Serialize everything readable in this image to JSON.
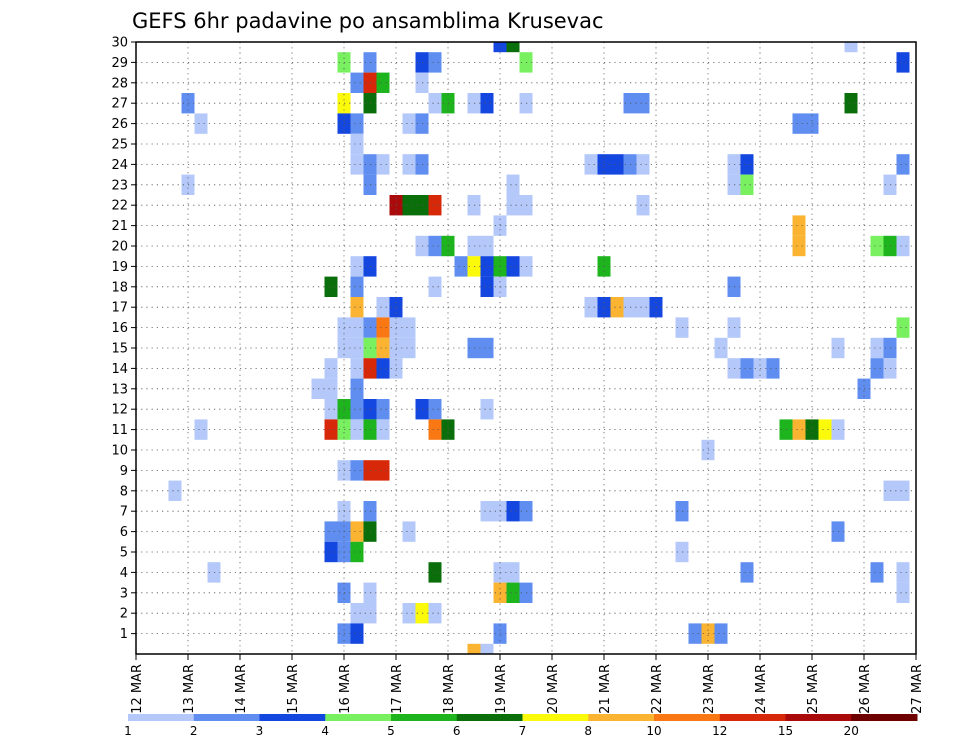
{
  "chart_data": {
    "type": "heatmap",
    "title": "GEFS 6hr padavine po ansamblima Krusevac",
    "xlabel": "",
    "ylabel": "",
    "x_tick_labels": [
      "12 MAR",
      "13 MAR",
      "14 MAR",
      "15 MAR",
      "16 MAR",
      "17 MAR",
      "18 MAR",
      "19 MAR",
      "20 MAR",
      "21 MAR",
      "22 MAR",
      "23 MAR",
      "24 MAR",
      "25 MAR",
      "26 MAR",
      "27 MAR"
    ],
    "y_tick_labels": [
      "1",
      "2",
      "3",
      "4",
      "5",
      "6",
      "7",
      "8",
      "9",
      "10",
      "11",
      "12",
      "13",
      "14",
      "15",
      "16",
      "17",
      "18",
      "19",
      "20",
      "21",
      "22",
      "23",
      "24",
      "25",
      "26",
      "27",
      "28",
      "29",
      "30"
    ],
    "x_range_days": [
      12,
      27
    ],
    "y_range": [
      0,
      30
    ],
    "time_step_hours": 6,
    "grid": true,
    "colorbar": {
      "placement": "bottom",
      "tick_labels": [
        "1",
        "2",
        "3",
        "4",
        "5",
        "6",
        "7",
        "8",
        "10",
        "12",
        "15",
        "20"
      ],
      "colors": [
        "#b4c8fa",
        "#5f8ef0",
        "#1446e0",
        "#78f060",
        "#1eb41e",
        "#0a6e0a",
        "#fafa0a",
        "#fab432",
        "#fa7814",
        "#d7280a",
        "#aa0a0a",
        "#6e0000"
      ]
    },
    "cells": [
      {
        "m": 30,
        "d": 19.0,
        "c": 2
      },
      {
        "m": 30,
        "d": 19.25,
        "c": 5
      },
      {
        "m": 30,
        "d": 25.75,
        "c": 0
      },
      {
        "m": 29,
        "d": 16.0,
        "c": 3
      },
      {
        "m": 29,
        "d": 16.5,
        "c": 1
      },
      {
        "m": 29,
        "d": 17.5,
        "c": 2
      },
      {
        "m": 29,
        "d": 17.75,
        "c": 1
      },
      {
        "m": 29,
        "d": 19.5,
        "c": 3
      },
      {
        "m": 29,
        "d": 26.75,
        "c": 2
      },
      {
        "m": 28,
        "d": 16.25,
        "c": 1
      },
      {
        "m": 28,
        "d": 16.5,
        "c": 9
      },
      {
        "m": 28,
        "d": 16.75,
        "c": 4
      },
      {
        "m": 28,
        "d": 17.5,
        "c": 0
      },
      {
        "m": 27,
        "d": 13.0,
        "c": 1
      },
      {
        "m": 27,
        "d": 16.0,
        "c": 6
      },
      {
        "m": 27,
        "d": 16.5,
        "c": 5
      },
      {
        "m": 27,
        "d": 17.75,
        "c": 0
      },
      {
        "m": 27,
        "d": 18.0,
        "c": 4
      },
      {
        "m": 27,
        "d": 18.5,
        "c": 0
      },
      {
        "m": 27,
        "d": 18.75,
        "c": 2
      },
      {
        "m": 27,
        "d": 19.5,
        "c": 0
      },
      {
        "m": 27,
        "d": 21.5,
        "c": 1
      },
      {
        "m": 27,
        "d": 21.75,
        "c": 1
      },
      {
        "m": 27,
        "d": 25.75,
        "c": 5
      },
      {
        "m": 26,
        "d": 13.25,
        "c": 0
      },
      {
        "m": 26,
        "d": 16.0,
        "c": 2
      },
      {
        "m": 26,
        "d": 16.25,
        "c": 1
      },
      {
        "m": 26,
        "d": 17.25,
        "c": 0
      },
      {
        "m": 26,
        "d": 17.5,
        "c": 1
      },
      {
        "m": 26,
        "d": 24.75,
        "c": 1
      },
      {
        "m": 26,
        "d": 25.0,
        "c": 1
      },
      {
        "m": 25,
        "d": 16.25,
        "c": 0
      },
      {
        "m": 24,
        "d": 16.25,
        "c": 0
      },
      {
        "m": 24,
        "d": 16.5,
        "c": 1
      },
      {
        "m": 24,
        "d": 16.75,
        "c": 0
      },
      {
        "m": 24,
        "d": 17.25,
        "c": 0
      },
      {
        "m": 24,
        "d": 17.5,
        "c": 1
      },
      {
        "m": 24,
        "d": 20.75,
        "c": 0
      },
      {
        "m": 24,
        "d": 21.0,
        "c": 2
      },
      {
        "m": 24,
        "d": 21.25,
        "c": 2
      },
      {
        "m": 24,
        "d": 21.5,
        "c": 1
      },
      {
        "m": 24,
        "d": 21.75,
        "c": 0
      },
      {
        "m": 24,
        "d": 23.5,
        "c": 0
      },
      {
        "m": 24,
        "d": 23.75,
        "c": 2
      },
      {
        "m": 24,
        "d": 26.75,
        "c": 1
      },
      {
        "m": 23,
        "d": 13.0,
        "c": 0
      },
      {
        "m": 23,
        "d": 16.5,
        "c": 1
      },
      {
        "m": 23,
        "d": 19.25,
        "c": 0
      },
      {
        "m": 23,
        "d": 23.5,
        "c": 0
      },
      {
        "m": 23,
        "d": 23.75,
        "c": 3
      },
      {
        "m": 23,
        "d": 26.5,
        "c": 0
      },
      {
        "m": 22,
        "d": 17.0,
        "c": 10
      },
      {
        "m": 22,
        "d": 17.25,
        "c": 5
      },
      {
        "m": 22,
        "d": 17.5,
        "c": 5
      },
      {
        "m": 22,
        "d": 17.75,
        "c": 9
      },
      {
        "m": 22,
        "d": 18.5,
        "c": 0
      },
      {
        "m": 22,
        "d": 19.25,
        "c": 0
      },
      {
        "m": 22,
        "d": 19.5,
        "c": 0
      },
      {
        "m": 22,
        "d": 21.75,
        "c": 0
      },
      {
        "m": 21,
        "d": 19.0,
        "c": 0
      },
      {
        "m": 21,
        "d": 24.75,
        "c": 7
      },
      {
        "m": 20,
        "d": 17.5,
        "c": 0
      },
      {
        "m": 20,
        "d": 17.75,
        "c": 1
      },
      {
        "m": 20,
        "d": 18.0,
        "c": 4
      },
      {
        "m": 20,
        "d": 18.5,
        "c": 0
      },
      {
        "m": 20,
        "d": 18.75,
        "c": 0
      },
      {
        "m": 20,
        "d": 24.75,
        "c": 7
      },
      {
        "m": 20,
        "d": 26.25,
        "c": 3
      },
      {
        "m": 20,
        "d": 26.5,
        "c": 4
      },
      {
        "m": 20,
        "d": 26.75,
        "c": 0
      },
      {
        "m": 19,
        "d": 16.25,
        "c": 0
      },
      {
        "m": 19,
        "d": 16.5,
        "c": 2
      },
      {
        "m": 19,
        "d": 18.25,
        "c": 1
      },
      {
        "m": 19,
        "d": 18.5,
        "c": 6
      },
      {
        "m": 19,
        "d": 18.75,
        "c": 2
      },
      {
        "m": 19,
        "d": 19.0,
        "c": 4
      },
      {
        "m": 19,
        "d": 19.25,
        "c": 2
      },
      {
        "m": 19,
        "d": 19.5,
        "c": 0
      },
      {
        "m": 19,
        "d": 21.0,
        "c": 4
      },
      {
        "m": 18,
        "d": 15.75,
        "c": 5
      },
      {
        "m": 18,
        "d": 16.25,
        "c": 1
      },
      {
        "m": 18,
        "d": 17.75,
        "c": 0
      },
      {
        "m": 18,
        "d": 18.75,
        "c": 2
      },
      {
        "m": 18,
        "d": 19.0,
        "c": 0
      },
      {
        "m": 18,
        "d": 23.5,
        "c": 1
      },
      {
        "m": 17,
        "d": 16.25,
        "c": 7
      },
      {
        "m": 17,
        "d": 16.75,
        "c": 0
      },
      {
        "m": 17,
        "d": 17.0,
        "c": 2
      },
      {
        "m": 17,
        "d": 20.75,
        "c": 0
      },
      {
        "m": 17,
        "d": 21.0,
        "c": 2
      },
      {
        "m": 17,
        "d": 21.25,
        "c": 7
      },
      {
        "m": 17,
        "d": 21.5,
        "c": 0
      },
      {
        "m": 17,
        "d": 21.75,
        "c": 0
      },
      {
        "m": 17,
        "d": 22.0,
        "c": 2
      },
      {
        "m": 16,
        "d": 16.0,
        "c": 0
      },
      {
        "m": 16,
        "d": 16.25,
        "c": 0
      },
      {
        "m": 16,
        "d": 16.5,
        "c": 1
      },
      {
        "m": 16,
        "d": 16.75,
        "c": 8
      },
      {
        "m": 16,
        "d": 17.0,
        "c": 0
      },
      {
        "m": 16,
        "d": 17.25,
        "c": 0
      },
      {
        "m": 16,
        "d": 22.5,
        "c": 0
      },
      {
        "m": 16,
        "d": 23.5,
        "c": 0
      },
      {
        "m": 16,
        "d": 26.75,
        "c": 3
      },
      {
        "m": 15,
        "d": 16.0,
        "c": 0
      },
      {
        "m": 15,
        "d": 16.25,
        "c": 0
      },
      {
        "m": 15,
        "d": 16.5,
        "c": 3
      },
      {
        "m": 15,
        "d": 16.75,
        "c": 7
      },
      {
        "m": 15,
        "d": 17.0,
        "c": 0
      },
      {
        "m": 15,
        "d": 17.25,
        "c": 0
      },
      {
        "m": 15,
        "d": 18.5,
        "c": 1
      },
      {
        "m": 15,
        "d": 18.75,
        "c": 1
      },
      {
        "m": 15,
        "d": 23.25,
        "c": 0
      },
      {
        "m": 15,
        "d": 25.5,
        "c": 0
      },
      {
        "m": 15,
        "d": 26.25,
        "c": 0
      },
      {
        "m": 15,
        "d": 26.5,
        "c": 1
      },
      {
        "m": 14,
        "d": 15.75,
        "c": 0
      },
      {
        "m": 14,
        "d": 16.25,
        "c": 0
      },
      {
        "m": 14,
        "d": 16.5,
        "c": 9
      },
      {
        "m": 14,
        "d": 16.75,
        "c": 2
      },
      {
        "m": 14,
        "d": 17.0,
        "c": 0
      },
      {
        "m": 14,
        "d": 23.5,
        "c": 0
      },
      {
        "m": 14,
        "d": 23.75,
        "c": 1
      },
      {
        "m": 14,
        "d": 24.0,
        "c": 0
      },
      {
        "m": 14,
        "d": 24.25,
        "c": 1
      },
      {
        "m": 14,
        "d": 26.25,
        "c": 1
      },
      {
        "m": 14,
        "d": 26.5,
        "c": 0
      },
      {
        "m": 13,
        "d": 15.5,
        "c": 0
      },
      {
        "m": 13,
        "d": 15.75,
        "c": 0
      },
      {
        "m": 13,
        "d": 16.25,
        "c": 1
      },
      {
        "m": 13,
        "d": 26.0,
        "c": 1
      },
      {
        "m": 12,
        "d": 15.75,
        "c": 0
      },
      {
        "m": 12,
        "d": 16.0,
        "c": 4
      },
      {
        "m": 12,
        "d": 16.25,
        "c": 1
      },
      {
        "m": 12,
        "d": 16.5,
        "c": 2
      },
      {
        "m": 12,
        "d": 16.75,
        "c": 1
      },
      {
        "m": 12,
        "d": 17.5,
        "c": 2
      },
      {
        "m": 12,
        "d": 17.75,
        "c": 1
      },
      {
        "m": 12,
        "d": 18.75,
        "c": 0
      },
      {
        "m": 11,
        "d": 13.25,
        "c": 0
      },
      {
        "m": 11,
        "d": 15.75,
        "c": 9
      },
      {
        "m": 11,
        "d": 16.0,
        "c": 3
      },
      {
        "m": 11,
        "d": 16.25,
        "c": 0
      },
      {
        "m": 11,
        "d": 16.5,
        "c": 4
      },
      {
        "m": 11,
        "d": 16.75,
        "c": 0
      },
      {
        "m": 11,
        "d": 17.75,
        "c": 8
      },
      {
        "m": 11,
        "d": 18.0,
        "c": 5
      },
      {
        "m": 11,
        "d": 24.5,
        "c": 4
      },
      {
        "m": 11,
        "d": 24.75,
        "c": 7
      },
      {
        "m": 11,
        "d": 25.0,
        "c": 5
      },
      {
        "m": 11,
        "d": 25.25,
        "c": 6
      },
      {
        "m": 11,
        "d": 25.5,
        "c": 0
      },
      {
        "m": 10,
        "d": 23.0,
        "c": 0
      },
      {
        "m": 9,
        "d": 16.0,
        "c": 0
      },
      {
        "m": 9,
        "d": 16.25,
        "c": 1
      },
      {
        "m": 9,
        "d": 16.5,
        "c": 9
      },
      {
        "m": 9,
        "d": 16.75,
        "c": 9
      },
      {
        "m": 8,
        "d": 12.75,
        "c": 0
      },
      {
        "m": 8,
        "d": 26.5,
        "c": 0
      },
      {
        "m": 8,
        "d": 26.75,
        "c": 0
      },
      {
        "m": 7,
        "d": 16.0,
        "c": 0
      },
      {
        "m": 7,
        "d": 16.5,
        "c": 1
      },
      {
        "m": 7,
        "d": 18.75,
        "c": 0
      },
      {
        "m": 7,
        "d": 19.0,
        "c": 0
      },
      {
        "m": 7,
        "d": 19.25,
        "c": 2
      },
      {
        "m": 7,
        "d": 19.5,
        "c": 1
      },
      {
        "m": 7,
        "d": 22.5,
        "c": 1
      },
      {
        "m": 6,
        "d": 15.75,
        "c": 1
      },
      {
        "m": 6,
        "d": 16.0,
        "c": 1
      },
      {
        "m": 6,
        "d": 16.25,
        "c": 7
      },
      {
        "m": 6,
        "d": 16.5,
        "c": 5
      },
      {
        "m": 6,
        "d": 17.25,
        "c": 0
      },
      {
        "m": 6,
        "d": 25.5,
        "c": 1
      },
      {
        "m": 5,
        "d": 15.75,
        "c": 2
      },
      {
        "m": 5,
        "d": 16.0,
        "c": 1
      },
      {
        "m": 5,
        "d": 16.25,
        "c": 4
      },
      {
        "m": 5,
        "d": 22.5,
        "c": 0
      },
      {
        "m": 4,
        "d": 13.5,
        "c": 0
      },
      {
        "m": 4,
        "d": 17.75,
        "c": 5
      },
      {
        "m": 4,
        "d": 19.0,
        "c": 0
      },
      {
        "m": 4,
        "d": 19.25,
        "c": 0
      },
      {
        "m": 4,
        "d": 23.75,
        "c": 1
      },
      {
        "m": 4,
        "d": 26.25,
        "c": 1
      },
      {
        "m": 4,
        "d": 26.75,
        "c": 0
      },
      {
        "m": 3,
        "d": 16.0,
        "c": 1
      },
      {
        "m": 3,
        "d": 16.5,
        "c": 0
      },
      {
        "m": 3,
        "d": 19.0,
        "c": 7
      },
      {
        "m": 3,
        "d": 19.25,
        "c": 4
      },
      {
        "m": 3,
        "d": 19.5,
        "c": 1
      },
      {
        "m": 3,
        "d": 26.75,
        "c": 0
      },
      {
        "m": 2,
        "d": 16.25,
        "c": 0
      },
      {
        "m": 2,
        "d": 16.5,
        "c": 0
      },
      {
        "m": 2,
        "d": 17.25,
        "c": 0
      },
      {
        "m": 2,
        "d": 17.5,
        "c": 6
      },
      {
        "m": 2,
        "d": 17.75,
        "c": 0
      },
      {
        "m": 1,
        "d": 16.0,
        "c": 1
      },
      {
        "m": 1,
        "d": 16.25,
        "c": 2
      },
      {
        "m": 1,
        "d": 19.0,
        "c": 1
      },
      {
        "m": 1,
        "d": 22.75,
        "c": 1
      },
      {
        "m": 1,
        "d": 23.0,
        "c": 7
      },
      {
        "m": 1,
        "d": 23.25,
        "c": 1
      },
      {
        "m": 0,
        "d": 18.5,
        "c": 7
      },
      {
        "m": 0,
        "d": 18.75,
        "c": 0
      }
    ]
  }
}
